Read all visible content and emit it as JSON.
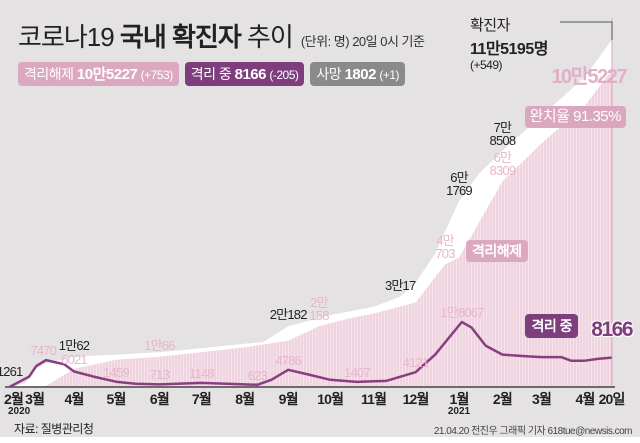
{
  "header": {
    "title_light": "코로나19",
    "title_bold": "국내 확진자",
    "title_end": "추이",
    "unit_note": "(단위: 명) 20일 0시 기준"
  },
  "badges": [
    {
      "label": "격리해제",
      "value": "10만5227",
      "change": "(+753)",
      "color": "#dca8bf"
    },
    {
      "label": "격리 중",
      "value": "8166",
      "change": "(-205)",
      "color": "#7e3d7c"
    },
    {
      "label": "사망",
      "value": "1802",
      "change": "(+1)",
      "color": "#8a8a8a"
    }
  ],
  "summary": {
    "label": "확진자",
    "value": "11만5195명",
    "change": "(+549)"
  },
  "callouts": {
    "released_total": "10만5227",
    "recovery_rate": "완치율 91.35%",
    "released_tag": "격리해제",
    "active_tag": "격리 중",
    "active_end": "8166"
  },
  "chart_data": {
    "type": "area",
    "title": "코로나19 국내 확진자 추이",
    "series": [
      {
        "name": "확진자",
        "kind": "area",
        "color": "#ffffff",
        "points": [
          [
            "2020-02-15",
            28
          ],
          [
            "2020-02-26",
            1261
          ],
          [
            "2020-03-05",
            6088
          ],
          [
            "2020-03-12",
            7869
          ],
          [
            "2020-04-01",
            10062
          ],
          [
            "2020-05-01",
            10774
          ],
          [
            "2020-06-01",
            11541
          ],
          [
            "2020-07-01",
            12850
          ],
          [
            "2020-08-01",
            14336
          ],
          [
            "2020-08-14",
            14873
          ],
          [
            "2020-09-01",
            20182
          ],
          [
            "2020-10-01",
            23889
          ],
          [
            "2020-11-01",
            26635
          ],
          [
            "2020-11-20",
            30017
          ],
          [
            "2020-12-01",
            34652
          ],
          [
            "2020-12-15",
            44364
          ],
          [
            "2021-01-01",
            61769
          ],
          [
            "2021-01-15",
            70728
          ],
          [
            "2021-02-01",
            78508
          ],
          [
            "2021-03-01",
            90029
          ],
          [
            "2021-04-01",
            103088
          ],
          [
            "2021-04-20",
            115195
          ]
        ]
      },
      {
        "name": "격리해제",
        "kind": "area",
        "color": "#efd2de",
        "points": [
          [
            "2020-02-15",
            16
          ],
          [
            "2020-03-12",
            333
          ],
          [
            "2020-04-01",
            6021
          ],
          [
            "2020-05-01",
            9072
          ],
          [
            "2020-06-01",
            10066
          ],
          [
            "2020-07-01",
            11537
          ],
          [
            "2020-08-01",
            13183
          ],
          [
            "2020-09-01",
            15400
          ],
          [
            "2020-09-23",
            20158
          ],
          [
            "2020-10-15",
            22863
          ],
          [
            "2020-11-01",
            24395
          ],
          [
            "2020-12-01",
            28065
          ],
          [
            "2020-12-22",
            40703
          ],
          [
            "2021-01-01",
            43000
          ],
          [
            "2021-02-01",
            68309
          ],
          [
            "2021-03-01",
            81000
          ],
          [
            "2021-04-01",
            93500
          ],
          [
            "2021-04-20",
            105227
          ]
        ]
      },
      {
        "name": "격리 중",
        "kind": "line",
        "color": "#8a3e82",
        "points": [
          [
            "2020-02-15",
            20
          ],
          [
            "2020-02-29",
            2900
          ],
          [
            "2020-03-05",
            5800
          ],
          [
            "2020-03-12",
            7470
          ],
          [
            "2020-03-25",
            6300
          ],
          [
            "2020-04-01",
            4300
          ],
          [
            "2020-04-15",
            2900
          ],
          [
            "2020-05-01",
            1459
          ],
          [
            "2020-05-15",
            900
          ],
          [
            "2020-06-01",
            713
          ],
          [
            "2020-07-01",
            1148
          ],
          [
            "2020-08-10",
            623
          ],
          [
            "2020-08-20",
            2000
          ],
          [
            "2020-09-01",
            4786
          ],
          [
            "2020-09-15",
            3500
          ],
          [
            "2020-10-01",
            2000
          ],
          [
            "2020-10-20",
            1407
          ],
          [
            "2020-11-10",
            1700
          ],
          [
            "2020-12-01",
            4121
          ],
          [
            "2020-12-15",
            9000
          ],
          [
            "2021-01-03",
            18067
          ],
          [
            "2021-01-10",
            16500
          ],
          [
            "2021-01-20",
            11500
          ],
          [
            "2021-02-01",
            9000
          ],
          [
            "2021-02-15",
            8600
          ],
          [
            "2021-03-01",
            8300
          ],
          [
            "2021-03-15",
            8300
          ],
          [
            "2021-03-22",
            7300
          ],
          [
            "2021-04-01",
            7300
          ],
          [
            "2021-04-10",
            7800
          ],
          [
            "2021-04-20",
            8166
          ]
        ]
      }
    ],
    "data_labels": [
      {
        "text": "1261",
        "cls": "blk",
        "date": "2020-02-15",
        "v": 1261
      },
      {
        "text": "7470",
        "cls": "pk",
        "date": "2020-03-10",
        "v": 7470
      },
      {
        "text": "1만62",
        "cls": "blk",
        "date": "2020-04-01",
        "v": 10062
      },
      {
        "text": "6021",
        "cls": "pk",
        "date": "2020-04-01",
        "v": 6021
      },
      {
        "text": "1459",
        "cls": "pk",
        "date": "2020-05-01",
        "v": 1459
      },
      {
        "text": "1만66",
        "cls": "pk",
        "date": "2020-06-01",
        "v": 10066
      },
      {
        "text": "713",
        "cls": "pk",
        "date": "2020-06-01",
        "v": 713
      },
      {
        "text": "1148",
        "cls": "pk",
        "date": "2020-07-01",
        "v": 1148
      },
      {
        "text": "623",
        "cls": "pk",
        "date": "2020-08-10",
        "v": 623
      },
      {
        "text": "4786",
        "cls": "pk",
        "date": "2020-09-01",
        "v": 4786
      },
      {
        "text": "2만182",
        "cls": "blk",
        "date": "2020-09-01",
        "v": 20182
      },
      {
        "text": "2만 158",
        "cls": "pk",
        "date": "2020-09-23",
        "v": 20158
      },
      {
        "text": "1407",
        "cls": "pk",
        "date": "2020-10-20",
        "v": 1407
      },
      {
        "text": "3만17",
        "cls": "blk",
        "date": "2020-11-20",
        "v": 30017
      },
      {
        "text": "4121",
        "cls": "pk",
        "date": "2020-12-01",
        "v": 4121
      },
      {
        "text": "4만 703",
        "cls": "pk",
        "date": "2020-12-22",
        "v": 40703
      },
      {
        "text": "6만 1769",
        "cls": "blk",
        "date": "2021-01-01",
        "v": 61769
      },
      {
        "text": "1만8067",
        "cls": "pk",
        "date": "2021-01-03",
        "v": 18067
      },
      {
        "text": "7만 8508",
        "cls": "blk",
        "date": "2021-02-01",
        "v": 78508
      },
      {
        "text": "6만 8309",
        "cls": "pk",
        "date": "2021-02-01",
        "v": 68309
      }
    ],
    "x_ticks": [
      {
        "label": "2월",
        "date": "2020-02-15"
      },
      {
        "label": "3월",
        "date": "2020-03-01"
      },
      {
        "label": "4월",
        "date": "2020-04-01"
      },
      {
        "label": "5월",
        "date": "2020-05-01"
      },
      {
        "label": "6월",
        "date": "2020-06-01"
      },
      {
        "label": "7월",
        "date": "2020-07-01"
      },
      {
        "label": "8월",
        "date": "2020-08-01"
      },
      {
        "label": "9월",
        "date": "2020-09-01"
      },
      {
        "label": "10월",
        "date": "2020-10-01"
      },
      {
        "label": "11월",
        "date": "2020-11-01"
      },
      {
        "label": "12월",
        "date": "2020-12-01"
      },
      {
        "label": "1월",
        "date": "2021-01-01"
      },
      {
        "label": "2월",
        "date": "2021-02-01"
      },
      {
        "label": "3월",
        "date": "2021-03-01"
      },
      {
        "label": "4월",
        "date": "2021-04-01"
      },
      {
        "label": "20일",
        "date": "2021-04-20"
      }
    ],
    "year_labels": [
      {
        "label": "2020",
        "date": "2020-02-15"
      },
      {
        "label": "2021",
        "date": "2021-01-01"
      }
    ],
    "xlim": [
      "2020-02-15",
      "2021-04-20"
    ]
  },
  "footer": {
    "source": "자료: 질병관리청",
    "credit": "21.04.20 전진우 그래픽 기자 618tue@newsis.com",
    "watermark": "NEWSIS"
  }
}
